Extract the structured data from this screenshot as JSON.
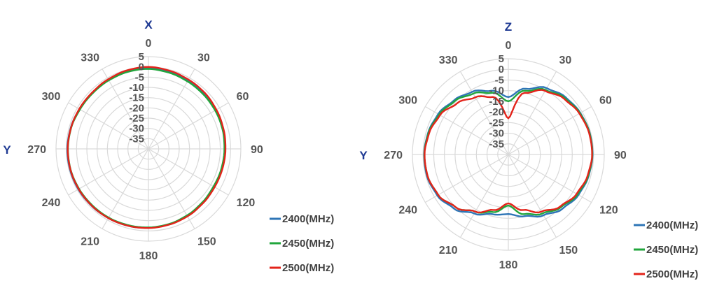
{
  "chart_data": [
    {
      "type": "line",
      "subtype": "polar",
      "top_axis_label": "X",
      "left_axis_label": "Y",
      "angle_ticks": [
        "0",
        "30",
        "60",
        "90",
        "120",
        "150",
        "180",
        "210",
        "240",
        "270",
        "300",
        "330"
      ],
      "radial_ticks": [
        "5",
        "0",
        "-5",
        "-10",
        "-15",
        "-20",
        "-25",
        "-30",
        "-35"
      ],
      "rlim": [
        -40,
        5
      ],
      "grid": true,
      "legend": "bottom-right",
      "angles_deg": [
        0,
        15,
        30,
        45,
        60,
        75,
        90,
        105,
        120,
        135,
        150,
        165,
        180,
        195,
        210,
        225,
        240,
        255,
        270,
        285,
        300,
        315,
        330,
        345
      ],
      "series": [
        {
          "name": "2400(MHz)",
          "color": "#2e75b6",
          "values": [
            -0.5,
            -1,
            -1.5,
            -2,
            -2.2,
            -2.5,
            -2.8,
            -3,
            -3.2,
            -2.8,
            -2.3,
            -1.8,
            -1.5,
            -1.2,
            -1,
            -0.8,
            -0.6,
            -0.5,
            -0.5,
            -0.8,
            -1.2,
            -1.3,
            -1,
            -0.7
          ]
        },
        {
          "name": "2450(MHz)",
          "color": "#21a63c",
          "values": [
            -1,
            -1.5,
            -2,
            -2.3,
            -2.5,
            -2.7,
            -3,
            -3.2,
            -3.4,
            -3,
            -2.5,
            -2,
            -1.7,
            -1.5,
            -1.3,
            -1.2,
            -1,
            -0.8,
            -0.8,
            -1,
            -1.5,
            -1.6,
            -1.4,
            -1.1
          ]
        },
        {
          "name": "2500(MHz)",
          "color": "#e3241b",
          "values": [
            0,
            -0.5,
            -1,
            -1.3,
            -1.8,
            -2.2,
            -2.5,
            -2.7,
            -2.8,
            -2.5,
            -2,
            -1.7,
            -1.4,
            -1.2,
            -1,
            -0.9,
            -0.8,
            -0.7,
            -0.7,
            -0.9,
            -1.1,
            -1.2,
            -0.8,
            -0.3
          ]
        }
      ]
    },
    {
      "type": "line",
      "subtype": "polar",
      "top_axis_label": "Z",
      "left_axis_label": "Y",
      "angle_ticks": [
        "0",
        "30",
        "60",
        "90",
        "120",
        "150",
        "180",
        "210",
        "240",
        "270",
        "300",
        "330"
      ],
      "radial_ticks": [
        "5",
        "0",
        "-5",
        "-10",
        "-15",
        "-20",
        "-25",
        "-30",
        "-35"
      ],
      "rlim": [
        -40,
        5
      ],
      "grid": true,
      "legend": "bottom-right",
      "angles_deg": [
        0,
        15,
        30,
        45,
        60,
        75,
        90,
        105,
        120,
        135,
        150,
        165,
        180,
        195,
        210,
        225,
        240,
        255,
        270,
        285,
        300,
        315,
        330,
        345
      ],
      "series": [
        {
          "name": "2400(MHz)",
          "color": "#2e75b6",
          "values": [
            -13,
            -8,
            -4,
            -2,
            -1,
            -0.5,
            -0.5,
            -1,
            -2,
            -4,
            -7,
            -10,
            -12,
            -11,
            -8,
            -4,
            -1.5,
            -0.5,
            -0.5,
            -1,
            -2,
            -4,
            -6,
            -9
          ]
        },
        {
          "name": "2450(MHz)",
          "color": "#21a63c",
          "values": [
            -15,
            -9,
            -5,
            -2.5,
            -1.2,
            -0.6,
            -0.6,
            -1.2,
            -2.5,
            -5,
            -8,
            -11,
            -16,
            -12,
            -9,
            -5,
            -2,
            -0.8,
            -0.6,
            -1.2,
            -2.5,
            -4.5,
            -7,
            -10
          ]
        },
        {
          "name": "2500(MHz)",
          "color": "#e3241b",
          "values": [
            -23,
            -10,
            -5.5,
            -3,
            -1.5,
            -0.8,
            -0.7,
            -1.5,
            -3,
            -5.5,
            -9,
            -13,
            -17,
            -13,
            -9,
            -5,
            -2,
            -0.8,
            -0.7,
            -1.5,
            -3,
            -6,
            -9,
            -12
          ]
        }
      ]
    }
  ]
}
